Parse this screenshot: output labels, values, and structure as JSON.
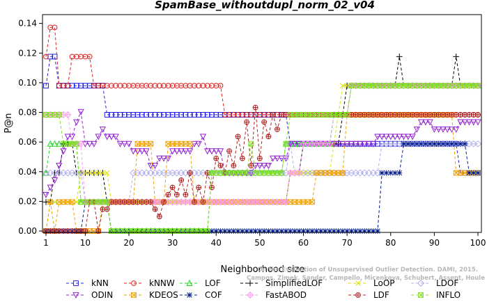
{
  "chart_data": {
    "type": "line",
    "title": "SpamBase_withoutdupl_norm_02_v04",
    "xlabel": "Neighborhood size",
    "ylabel": "P@n",
    "xlim": [
      1,
      100
    ],
    "ylim": [
      0,
      0.145
    ],
    "xticks": [
      "1",
      "10",
      "20",
      "30",
      "40",
      "50",
      "60",
      "70",
      "80",
      "90",
      "100"
    ],
    "yticks": [
      "0.00",
      "0.02",
      "0.04",
      "0.06",
      "0.08",
      "0.10",
      "0.12",
      "0.14"
    ],
    "legend_position": "bottom",
    "credit_lines": [
      "Campos, Zimek, Sander, Campello, Micenkova, Schubert, Assent, Houle",
      "On the Evaluation of Unsupervised Outlier Detection. DAMI, 2015."
    ],
    "series": [
      {
        "name": "kNN",
        "color": "#2020e0",
        "marker": "square",
        "points": [
          [
            1,
            0.098
          ],
          [
            2,
            0.1176
          ],
          [
            3,
            0.1176
          ],
          [
            4,
            0.098
          ],
          [
            14,
            0.098
          ],
          [
            15,
            0.0784
          ],
          [
            56,
            0.0784
          ],
          [
            57,
            0.0588
          ],
          [
            95,
            0.0588
          ],
          [
            96,
            0.0392
          ],
          [
            100,
            0.0392
          ]
        ]
      },
      {
        "name": "kNNW",
        "color": "#e01c1c",
        "marker": "circle",
        "points": [
          [
            1,
            0.1176
          ],
          [
            2,
            0.1373
          ],
          [
            3,
            0.1373
          ],
          [
            4,
            0.098
          ],
          [
            6,
            0.098
          ],
          [
            7,
            0.1176
          ],
          [
            11,
            0.1176
          ],
          [
            12,
            0.098
          ],
          [
            41,
            0.098
          ],
          [
            42,
            0.0784
          ],
          [
            100,
            0.0784
          ]
        ]
      },
      {
        "name": "LOF",
        "color": "#14d814",
        "marker": "triangle",
        "points": [
          [
            1,
            0.0392
          ],
          [
            2,
            0.0588
          ],
          [
            8,
            0.0588
          ],
          [
            9,
            0.0196
          ],
          [
            15,
            0.0196
          ],
          [
            16,
            0.0
          ],
          [
            38,
            0.0
          ],
          [
            39,
            0.0392
          ],
          [
            55,
            0.0392
          ],
          [
            56,
            0.0588
          ],
          [
            66,
            0.0588
          ],
          [
            67,
            0.0784
          ],
          [
            70,
            0.0784
          ],
          [
            71,
            0.098
          ],
          [
            100,
            0.098
          ]
        ]
      },
      {
        "name": "SimplifiedLOF",
        "color": "#000000",
        "marker": "plus",
        "points": [
          [
            1,
            0.0196
          ],
          [
            3,
            0.0392
          ],
          [
            4,
            0.0392
          ],
          [
            5,
            0.0588
          ],
          [
            7,
            0.0588
          ],
          [
            8,
            0.0392
          ],
          [
            14,
            0.0392
          ],
          [
            15,
            0.0196
          ],
          [
            56,
            0.0196
          ],
          [
            57,
            0.0392
          ],
          [
            59,
            0.0392
          ],
          [
            60,
            0.0588
          ],
          [
            68,
            0.0588
          ],
          [
            69,
            0.0784
          ],
          [
            70,
            0.098
          ],
          [
            81,
            0.098
          ],
          [
            82,
            0.1176
          ],
          [
            83,
            0.098
          ],
          [
            94,
            0.098
          ],
          [
            95,
            0.1176
          ],
          [
            96,
            0.098
          ],
          [
            100,
            0.098
          ]
        ]
      },
      {
        "name": "LoOP",
        "color": "#e0e000",
        "marker": "x",
        "points": [
          [
            1,
            0.0
          ],
          [
            2,
            0.0196
          ],
          [
            8,
            0.0196
          ],
          [
            9,
            0.0392
          ],
          [
            15,
            0.0392
          ],
          [
            16,
            0.0196
          ],
          [
            56,
            0.0196
          ],
          [
            57,
            0.0392
          ],
          [
            66,
            0.0392
          ],
          [
            67,
            0.0588
          ],
          [
            68,
            0.0784
          ],
          [
            69,
            0.098
          ],
          [
            100,
            0.098
          ]
        ]
      },
      {
        "name": "LDOF",
        "color": "#b0b0ee",
        "marker": "diamond",
        "points": [
          [
            1,
            0.0392
          ],
          [
            9,
            0.0392
          ],
          [
            10,
            0.0196
          ],
          [
            20,
            0.0196
          ],
          [
            21,
            0.0392
          ],
          [
            56,
            0.0392
          ],
          [
            57,
            0.0588
          ],
          [
            58,
            0.0392
          ],
          [
            77,
            0.0392
          ],
          [
            78,
            0.0588
          ],
          [
            100,
            0.0588
          ]
        ]
      },
      {
        "name": "ODIN",
        "color": "#9020d0",
        "marker": "triangle-down",
        "points": [
          [
            1,
            0.0245
          ],
          [
            2,
            0.0294
          ],
          [
            3,
            0.0343
          ],
          [
            4,
            0.0441
          ],
          [
            5,
            0.0539
          ],
          [
            6,
            0.0637
          ],
          [
            7,
            0.0637
          ],
          [
            8,
            0.0735
          ],
          [
            9,
            0.0804
          ],
          [
            10,
            0.0588
          ],
          [
            12,
            0.0588
          ],
          [
            13,
            0.0637
          ],
          [
            14,
            0.0686
          ],
          [
            15,
            0.0637
          ],
          [
            17,
            0.0637
          ],
          [
            18,
            0.0588
          ],
          [
            20,
            0.0588
          ],
          [
            21,
            0.0539
          ],
          [
            24,
            0.0539
          ],
          [
            25,
            0.0441
          ],
          [
            26,
            0.0441
          ],
          [
            27,
            0.049
          ],
          [
            29,
            0.049
          ],
          [
            30,
            0.0539
          ],
          [
            34,
            0.0539
          ],
          [
            35,
            0.0588
          ],
          [
            36,
            0.0588
          ],
          [
            37,
            0.0637
          ],
          [
            38,
            0.0539
          ],
          [
            41,
            0.0539
          ],
          [
            42,
            0.0392
          ],
          [
            48,
            0.0392
          ],
          [
            49,
            0.0441
          ],
          [
            52,
            0.0441
          ],
          [
            53,
            0.049
          ],
          [
            56,
            0.049
          ],
          [
            57,
            0.0588
          ],
          [
            76,
            0.0588
          ],
          [
            77,
            0.0637
          ],
          [
            85,
            0.0637
          ],
          [
            86,
            0.0686
          ],
          [
            87,
            0.0735
          ],
          [
            89,
            0.0735
          ],
          [
            90,
            0.0686
          ],
          [
            95,
            0.0686
          ],
          [
            96,
            0.0735
          ],
          [
            100,
            0.0735
          ]
        ]
      },
      {
        "name": "KDEOS",
        "color": "#f0a000",
        "marker": "square-x",
        "points": [
          [
            1,
            0.0
          ],
          [
            2,
            0.0196
          ],
          [
            3,
            0.0
          ],
          [
            4,
            0.0196
          ],
          [
            7,
            0.0196
          ],
          [
            8,
            0.0
          ],
          [
            13,
            0.0
          ],
          [
            14,
            0.0196
          ],
          [
            21,
            0.0196
          ],
          [
            22,
            0.0588
          ],
          [
            25,
            0.0588
          ],
          [
            26,
            0.0196
          ],
          [
            28,
            0.0196
          ],
          [
            29,
            0.0588
          ],
          [
            34,
            0.0588
          ],
          [
            35,
            0.0196
          ],
          [
            57,
            0.0196
          ],
          [
            58,
            0.0196
          ],
          [
            62,
            0.0196
          ],
          [
            63,
            0.0392
          ],
          [
            69,
            0.0392
          ],
          [
            70,
            0.0784
          ],
          [
            94,
            0.0784
          ],
          [
            95,
            0.0392
          ],
          [
            100,
            0.0392
          ]
        ]
      },
      {
        "name": "COF",
        "color": "#001c8c",
        "marker": "star",
        "points": [
          [
            1,
            0.0
          ],
          [
            9,
            0.0
          ],
          [
            10,
            0.0196
          ],
          [
            15,
            0.0196
          ],
          [
            16,
            0.0
          ],
          [
            37,
            0.0
          ],
          [
            38,
            0.0
          ],
          [
            77,
            0.0
          ],
          [
            78,
            0.0392
          ],
          [
            82,
            0.0392
          ],
          [
            83,
            0.0588
          ],
          [
            96,
            0.0588
          ],
          [
            97,
            0.0588
          ],
          [
            98,
            0.0392
          ],
          [
            100,
            0.0392
          ]
        ]
      },
      {
        "name": "FastABOD",
        "color": "#ff9cf0",
        "marker": "diamond-plus",
        "points": [
          [
            1,
            0.0784
          ],
          [
            6,
            0.0784
          ],
          [
            7,
            0.0588
          ],
          [
            9,
            0.0588
          ],
          [
            10,
            0.0196
          ],
          [
            56,
            0.0196
          ],
          [
            57,
            0.0392
          ],
          [
            59,
            0.0392
          ],
          [
            60,
            0.0588
          ],
          [
            66,
            0.0588
          ],
          [
            67,
            0.0784
          ],
          [
            70,
            0.0784
          ],
          [
            71,
            0.098
          ],
          [
            100,
            0.098
          ]
        ]
      },
      {
        "name": "LDF",
        "color": "#b02020",
        "marker": "circle-plus",
        "points": [
          [
            1,
            0.0
          ],
          [
            10,
            0.0
          ],
          [
            11,
            0.0196
          ],
          [
            12,
            0.0196
          ],
          [
            13,
            0.0
          ],
          [
            14,
            0.0147
          ],
          [
            15,
            0.0147
          ],
          [
            16,
            0.0196
          ],
          [
            25,
            0.0196
          ],
          [
            26,
            0.0147
          ],
          [
            27,
            0.0098
          ],
          [
            28,
            0.0196
          ],
          [
            29,
            0.0245
          ],
          [
            30,
            0.0294
          ],
          [
            31,
            0.0245
          ],
          [
            32,
            0.0343
          ],
          [
            33,
            0.0245
          ],
          [
            34,
            0.0392
          ],
          [
            35,
            0.0196
          ],
          [
            36,
            0.0294
          ],
          [
            37,
            0.0196
          ],
          [
            38,
            0.0392
          ],
          [
            39,
            0.0294
          ],
          [
            40,
            0.049
          ],
          [
            41,
            0.0441
          ],
          [
            42,
            0.0392
          ],
          [
            43,
            0.0539
          ],
          [
            44,
            0.0441
          ],
          [
            45,
            0.0637
          ],
          [
            46,
            0.049
          ],
          [
            47,
            0.0735
          ],
          [
            48,
            0.0441
          ],
          [
            49,
            0.0833
          ],
          [
            50,
            0.049
          ],
          [
            51,
            0.0735
          ],
          [
            52,
            0.0637
          ],
          [
            53,
            0.0784
          ],
          [
            54,
            0.0686
          ],
          [
            55,
            0.0784
          ],
          [
            56,
            0.0784
          ],
          [
            100,
            0.0784
          ]
        ]
      },
      {
        "name": "INFLO",
        "color": "#80e020",
        "marker": "hourglass",
        "points": [
          [
            1,
            0.0784
          ],
          [
            4,
            0.0784
          ],
          [
            5,
            0.0588
          ],
          [
            8,
            0.0588
          ],
          [
            9,
            0.0196
          ],
          [
            15,
            0.0196
          ],
          [
            16,
            0.0
          ],
          [
            38,
            0.0
          ],
          [
            39,
            0.0392
          ],
          [
            47,
            0.0392
          ],
          [
            48,
            0.0588
          ],
          [
            49,
            0.0392
          ],
          [
            55,
            0.0392
          ],
          [
            56,
            0.0588
          ],
          [
            57,
            0.0784
          ],
          [
            70,
            0.0784
          ],
          [
            71,
            0.098
          ],
          [
            100,
            0.098
          ]
        ]
      }
    ]
  }
}
